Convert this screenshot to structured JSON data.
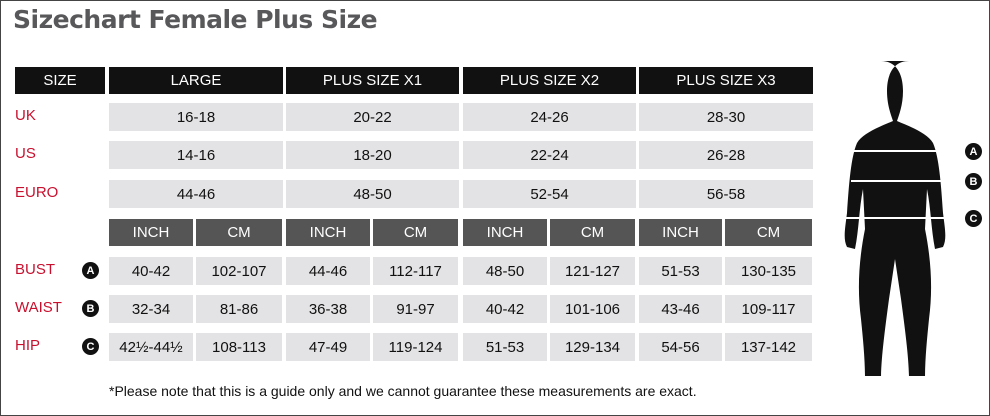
{
  "title": "Sizechart Female Plus Size",
  "header": {
    "size": "SIZE",
    "columns": [
      "LARGE",
      "PLUS SIZE X1",
      "PLUS SIZE X2",
      "PLUS SIZE X3"
    ]
  },
  "sizes": [
    {
      "label": "UK",
      "values": [
        "16-18",
        "20-22",
        "24-26",
        "28-30"
      ]
    },
    {
      "label": "US",
      "values": [
        "14-16",
        "18-20",
        "22-24",
        "26-28"
      ]
    },
    {
      "label": "EURO",
      "values": [
        "44-46",
        "48-50",
        "52-54",
        "56-58"
      ]
    }
  ],
  "units": [
    "INCH",
    "CM"
  ],
  "measurements": [
    {
      "label": "BUST",
      "marker": "A",
      "values": [
        "40-42",
        "102-107",
        "44-46",
        "112-117",
        "48-50",
        "121-127",
        "51-53",
        "130-135"
      ]
    },
    {
      "label": "WAIST",
      "marker": "B",
      "values": [
        "32-34",
        "81-86",
        "36-38",
        "91-97",
        "40-42",
        "101-106",
        "43-46",
        "109-117"
      ]
    },
    {
      "label": "HIP",
      "marker": "C",
      "values": [
        "42½-44½",
        "108-113",
        "47-49",
        "119-124",
        "51-53",
        "129-134",
        "54-56",
        "137-142"
      ]
    }
  ],
  "figure_markers": [
    "A",
    "B",
    "C"
  ],
  "note": "*Please note that this is a guide only and we cannot guarantee these measurements are exact.",
  "colors": {
    "label": "#c8102e",
    "header": "#111111",
    "unit_header": "#555555",
    "cell": "#e3e3e5"
  }
}
